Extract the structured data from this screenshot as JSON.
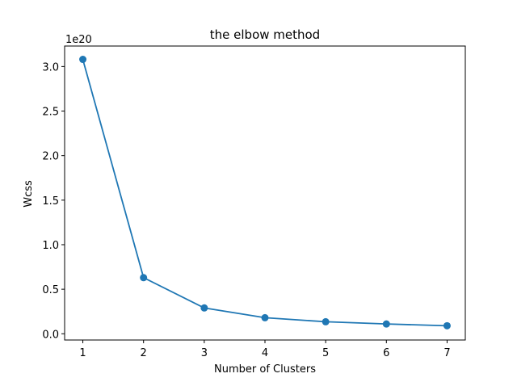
{
  "chart_data": {
    "type": "line",
    "title": "the elbow method",
    "xlabel": "Number of Clusters",
    "ylabel": "Wcss",
    "y_offset_label": "1e20",
    "x": [
      1,
      2,
      3,
      4,
      5,
      6,
      7
    ],
    "series": [
      {
        "values": [
          3.08,
          0.63,
          0.29,
          0.18,
          0.135,
          0.11,
          0.09
        ]
      }
    ],
    "xlim": [
      0.7,
      7.3
    ],
    "ylim": [
      -0.07,
      3.23
    ],
    "xticks": [
      "1",
      "2",
      "3",
      "4",
      "5",
      "6",
      "7"
    ],
    "yticks": [
      "0.0",
      "0.5",
      "1.0",
      "1.5",
      "2.0",
      "2.5",
      "3.0"
    ],
    "grid": false,
    "color": "#1f77b4"
  }
}
